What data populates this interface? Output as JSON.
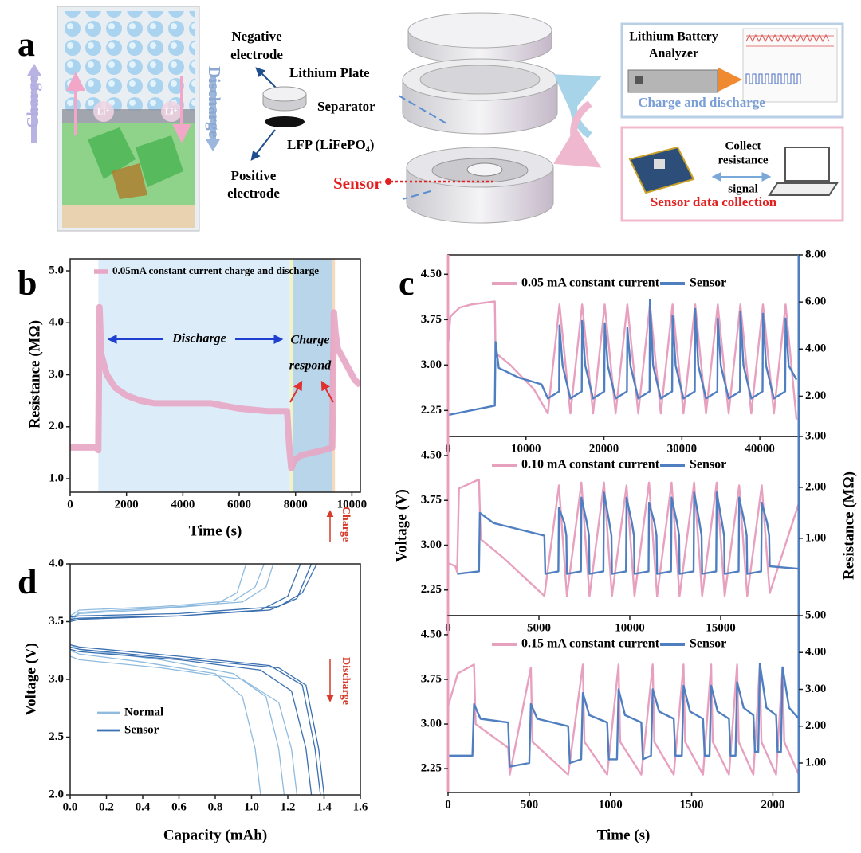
{
  "panel_a": {
    "label": "a",
    "charge": "Charge",
    "discharge": "Discharge",
    "li_ion": "Li⁺",
    "negative_electrode": [
      "Negative",
      "electrode"
    ],
    "lithium_plate": "Lithium Plate",
    "separator": "Separator",
    "lfp": "LFP (LiFePO₄)",
    "positive_electrode": [
      "Positive",
      "electrode"
    ],
    "sensor": "Sensor",
    "analyzer": [
      "Lithium Battery",
      "Analyzer"
    ],
    "charge_discharge": "Charge and discharge",
    "collect": [
      "Collect",
      "resistance",
      "signal"
    ],
    "sensor_data": "Sensor data collection"
  },
  "chart_data": [
    {
      "type": "line",
      "label": "b",
      "xlabel": "Time (s)",
      "ylabel": "Resistance (MΩ)",
      "xlim": [
        0,
        10300
      ],
      "xticks": [
        0,
        2000,
        4000,
        6000,
        8000,
        10000
      ],
      "ylim": [
        0.74,
        5.23
      ],
      "yticks": [
        {
          "value": 1,
          "label": "1.0"
        },
        {
          "value": 2,
          "label": "2.0"
        },
        {
          "value": 3,
          "label": "3.0"
        },
        {
          "value": 4,
          "label": "4.0"
        },
        {
          "value": 5,
          "label": "5.0"
        }
      ],
      "legend": "upper left",
      "regions": [
        {
          "start": 1000,
          "end": 7800,
          "color": "#dcedf9"
        },
        {
          "start": 7800,
          "end": 7900,
          "color": "#f3f4c6"
        },
        {
          "start": 7900,
          "end": 9300,
          "color": "#b8d5ea"
        },
        {
          "start": 9300,
          "end": 9400,
          "color": "#f7d9bd"
        }
      ],
      "annotations": [
        "Discharge",
        "Charge",
        "respond"
      ],
      "series": [
        {
          "name": "0.05mA constant current charge and discharge",
          "color": "#e7a6c4",
          "x": [
            0,
            950,
            1000,
            1040,
            1100,
            1300,
            1600,
            2000,
            2500,
            3000,
            4000,
            5000,
            6000,
            7000,
            7700,
            7780,
            7850,
            7950,
            8200,
            8600,
            9000,
            9300,
            9360,
            9420,
            9500,
            9800,
            10100,
            10300
          ],
          "values": [
            1.6,
            1.6,
            1.55,
            4.3,
            3.4,
            3.0,
            2.75,
            2.6,
            2.5,
            2.45,
            2.45,
            2.45,
            2.35,
            2.3,
            2.3,
            1.6,
            1.2,
            1.35,
            1.45,
            1.5,
            1.55,
            1.6,
            4.2,
            3.8,
            3.5,
            3.2,
            2.9,
            2.8
          ]
        }
      ]
    },
    {
      "type": "line",
      "label": "c",
      "xlim": [
        0,
        45000
      ],
      "xticks": [
        0,
        10000,
        20000,
        30000,
        40000
      ],
      "ylim": [
        1.82,
        4.82
      ],
      "yticks": [
        2.25,
        {
          "value": 3,
          "label": "3.00"
        },
        3.75,
        {
          "value": 4.5,
          "label": "4.50"
        }
      ],
      "y2lim": [
        0.29,
        8.0
      ],
      "y2ticks": [
        {
          "value": 2,
          "label": "2.00"
        },
        {
          "value": 4,
          "label": "4.00"
        },
        {
          "value": 6,
          "label": "6.00"
        },
        {
          "value": 8,
          "label": "8.00"
        }
      ],
      "legend": "upper right",
      "series": [
        {
          "name": "0.05 mA constant current",
          "color": "#e8a0bf",
          "x": [
            0,
            300,
            1500,
            3000,
            6000,
            6100,
            8000,
            11000,
            12800,
            14300,
            15700,
            17200,
            18600,
            20100,
            21500,
            23000,
            24400,
            25900,
            27300,
            28800,
            30200,
            31700,
            33100,
            34600,
            36000,
            37500,
            38900,
            40400,
            41800,
            43300,
            44700
          ],
          "values": [
            3.3,
            3.8,
            3.95,
            4.0,
            4.05,
            3.2,
            3.0,
            2.6,
            2.2,
            4.0,
            2.2,
            4.0,
            2.2,
            4.0,
            2.2,
            4.0,
            2.2,
            4.0,
            2.2,
            4.0,
            2.2,
            4.0,
            2.2,
            4.0,
            2.2,
            4.0,
            2.2,
            4.0,
            2.2,
            4.0,
            2.1
          ]
        },
        {
          "name": "Sensor",
          "color": "#4f7fc0",
          "axis": "y2",
          "x": [
            0,
            3000,
            6000,
            6100,
            6500,
            9000,
            12000,
            12800,
            14250,
            14300,
            14700,
            15700,
            17150,
            17200,
            17600,
            18600,
            20050,
            20100,
            20500,
            21500,
            22950,
            23000,
            23400,
            24400,
            25850,
            25900,
            26300,
            27300,
            28750,
            28800,
            29200,
            30200,
            31650,
            31700,
            32100,
            33100,
            34550,
            34600,
            35000,
            36000,
            37450,
            37500,
            37900,
            38900,
            40350,
            40400,
            40800,
            41800,
            43250,
            43300,
            43700,
            44700
          ],
          "values": [
            1.2,
            1.4,
            1.6,
            4.3,
            3.2,
            2.8,
            2.5,
            1.9,
            2.2,
            5.0,
            3.3,
            1.9,
            2.2,
            5.2,
            3.3,
            1.9,
            2.2,
            5.1,
            3.3,
            1.9,
            2.2,
            4.9,
            3.3,
            1.9,
            2.2,
            6.1,
            3.3,
            1.9,
            2.2,
            5.4,
            3.3,
            1.9,
            2.2,
            5.7,
            3.3,
            1.9,
            2.2,
            5.3,
            3.3,
            1.9,
            2.2,
            5.6,
            3.3,
            1.9,
            2.2,
            5.5,
            3.3,
            1.9,
            2.2,
            5.3,
            3.3,
            2.7
          ]
        }
      ]
    },
    {
      "type": "line",
      "ylabel": "Voltage (V)",
      "y2label": "Resistance (MΩ)",
      "xlim": [
        0,
        19300
      ],
      "xticks": [
        0,
        5000,
        10000,
        15000
      ],
      "ylim": [
        1.82,
        4.82
      ],
      "yticks": [
        2.25,
        {
          "value": 3,
          "label": "3.00"
        },
        3.75,
        {
          "value": 4.5,
          "label": "4.50"
        }
      ],
      "y2lim": [
        -0.52,
        3.0
      ],
      "y2ticks": [
        {
          "value": 1,
          "label": "1.00"
        },
        {
          "value": 2,
          "label": "2.00"
        },
        {
          "value": 3,
          "label": "3.00"
        }
      ],
      "legend": "upper right",
      "series": [
        {
          "name": "0.10 mA constant current",
          "color": "#e8a0bf",
          "x": [
            0,
            400,
            500,
            600,
            1700,
            1800,
            3000,
            5300,
            6100,
            6540,
            7340,
            7780,
            8580,
            9020,
            9820,
            10260,
            11060,
            11500,
            12300,
            12740,
            13540,
            13980,
            14780,
            15220,
            16020,
            16460,
            17260,
            17700,
            19300
          ],
          "values": [
            2.7,
            2.65,
            2.55,
            3.95,
            4.1,
            3.1,
            2.8,
            2.15,
            4.0,
            2.15,
            4.05,
            2.15,
            4.05,
            2.15,
            4.0,
            2.15,
            4.05,
            2.15,
            4.05,
            2.15,
            4.05,
            2.15,
            4.05,
            2.15,
            4.0,
            2.15,
            4.0,
            2.2,
            3.7
          ]
        },
        {
          "name": "Sensor",
          "color": "#4f7fc0",
          "axis": "y2",
          "x": [
            500,
            1700,
            1750,
            2500,
            5300,
            5350,
            6070,
            6100,
            6400,
            6510,
            6540,
            7310,
            7340,
            7640,
            7750,
            7780,
            8550,
            8580,
            8880,
            8990,
            9020,
            9790,
            9820,
            10120,
            10230,
            10260,
            11030,
            11060,
            11360,
            11470,
            11500,
            12270,
            12300,
            12600,
            12710,
            12740,
            13510,
            13540,
            13840,
            13950,
            13980,
            14750,
            14780,
            15080,
            15190,
            15220,
            15990,
            16020,
            16320,
            16430,
            16460,
            17230,
            17260,
            17560,
            17670,
            17700,
            19300
          ],
          "values": [
            0.3,
            0.35,
            1.5,
            1.3,
            1.05,
            0.3,
            0.35,
            1.6,
            1.3,
            1.05,
            0.3,
            0.35,
            1.8,
            1.3,
            1.05,
            0.3,
            0.35,
            1.9,
            1.3,
            1.05,
            0.3,
            0.35,
            1.8,
            1.3,
            1.05,
            0.3,
            0.35,
            1.7,
            1.3,
            1.05,
            0.3,
            0.35,
            1.8,
            1.3,
            1.05,
            0.3,
            0.35,
            1.9,
            1.3,
            1.05,
            0.3,
            0.35,
            1.9,
            1.3,
            1.05,
            0.3,
            0.35,
            1.8,
            1.3,
            1.05,
            0.3,
            0.35,
            1.7,
            1.3,
            1.05,
            0.45,
            0.4
          ]
        }
      ]
    },
    {
      "type": "line",
      "xlabel": "Time (s)",
      "xlim": [
        0,
        2160
      ],
      "xticks": [
        0,
        500,
        1000,
        1500,
        2000
      ],
      "ylim": [
        1.85,
        4.82
      ],
      "yticks": [
        2.25,
        {
          "value": 3,
          "label": "3.00"
        },
        3.75,
        {
          "value": 4.5,
          "label": "4.50"
        }
      ],
      "y2lim": [
        0.2,
        5.0
      ],
      "y2ticks": [
        {
          "value": 1,
          "label": "1.00"
        },
        {
          "value": 2,
          "label": "2.00"
        },
        {
          "value": 3,
          "label": "3.00"
        },
        {
          "value": 4,
          "label": "4.00"
        },
        {
          "value": 5,
          "label": "5.00"
        }
      ],
      "legend": "upper right",
      "series": [
        {
          "name": "0.15 mA constant current",
          "color": "#e8a0bf",
          "x": [
            0,
            60,
            160,
            170,
            370,
            380,
            510,
            520,
            740,
            830,
            840,
            980,
            1050,
            1060,
            1190,
            1260,
            1270,
            1390,
            1450,
            1460,
            1570,
            1620,
            1630,
            1730,
            1780,
            1790,
            1880,
            1920,
            1930,
            2020,
            2060,
            2070,
            2160
          ],
          "values": [
            3.3,
            3.85,
            4.0,
            3.0,
            2.6,
            2.15,
            3.95,
            2.7,
            2.15,
            4.0,
            2.7,
            2.15,
            4.0,
            2.7,
            2.15,
            4.0,
            2.7,
            2.15,
            4.0,
            2.7,
            2.15,
            4.0,
            2.7,
            2.15,
            4.0,
            2.7,
            2.15,
            4.0,
            2.7,
            2.15,
            3.95,
            2.7,
            2.15
          ]
        },
        {
          "name": "Sensor",
          "color": "#4f7fc0",
          "axis": "y2",
          "x": [
            0,
            150,
            160,
            200,
            370,
            380,
            500,
            510,
            550,
            740,
            750,
            820,
            830,
            870,
            980,
            990,
            1040,
            1050,
            1090,
            1190,
            1200,
            1250,
            1260,
            1300,
            1390,
            1400,
            1440,
            1450,
            1490,
            1570,
            1580,
            1610,
            1620,
            1660,
            1730,
            1740,
            1770,
            1780,
            1820,
            1880,
            1890,
            1910,
            1920,
            1960,
            2020,
            2030,
            2050,
            2060,
            2100,
            2160
          ],
          "values": [
            1.2,
            1.2,
            2.6,
            2.2,
            2.1,
            0.9,
            1.0,
            2.6,
            2.2,
            2.0,
            1.0,
            1.1,
            2.9,
            2.3,
            2.1,
            1.1,
            1.1,
            3.0,
            2.3,
            2.1,
            1.1,
            1.2,
            3.0,
            2.4,
            2.2,
            1.2,
            1.2,
            3.1,
            2.4,
            2.2,
            1.2,
            1.2,
            3.1,
            2.4,
            2.2,
            1.2,
            1.2,
            3.2,
            2.5,
            2.3,
            1.3,
            1.3,
            3.7,
            2.5,
            2.3,
            1.3,
            1.3,
            3.6,
            2.5,
            2.2
          ]
        }
      ]
    },
    {
      "type": "line",
      "label": "d",
      "xlabel": "Capacity (mAh)",
      "ylabel": "Voltage (V)",
      "xlim": [
        0,
        1.6
      ],
      "xticks": [
        {
          "value": 0,
          "label": "0.0"
        },
        0.2,
        0.4,
        0.6,
        0.8,
        {
          "value": 1,
          "label": "1.0"
        },
        1.2,
        1.4,
        1.6
      ],
      "ylim": [
        2.0,
        4.0
      ],
      "yticks": [
        {
          "value": 2,
          "label": "2.0"
        },
        2.5,
        {
          "value": 3,
          "label": "3.0"
        },
        3.5,
        {
          "value": 4,
          "label": "4.0"
        }
      ],
      "legend": "center left",
      "annotations": [
        "Charge",
        "Discharge"
      ],
      "series": [
        {
          "name": "Normal",
          "color": "#8fbbdf",
          "x": [
            0,
            0.05,
            0.4,
            0.8,
            0.92,
            0.97,
            null,
            0,
            0.05,
            0.4,
            0.8,
            0.95,
            1.02,
            1.05,
            null,
            0,
            0.05,
            0.5,
            0.9,
            1.02,
            1.07,
            null,
            0,
            0.05,
            0.5,
            0.9,
            1.08,
            1.15,
            1.18,
            null,
            0,
            0.05,
            0.5,
            0.95,
            1.08,
            1.12,
            null,
            0,
            0.05,
            0.5,
            0.95,
            1.15,
            1.22,
            1.25
          ],
          "values": [
            3.5,
            3.57,
            3.6,
            3.65,
            3.75,
            4.0,
            null,
            3.25,
            3.22,
            3.15,
            3.05,
            2.85,
            2.4,
            2.0,
            null,
            3.55,
            3.6,
            3.63,
            3.68,
            3.8,
            4.0,
            null,
            3.3,
            3.26,
            3.17,
            3.05,
            2.85,
            2.4,
            2.0,
            null,
            3.52,
            3.58,
            3.62,
            3.67,
            3.8,
            4.0,
            null,
            3.2,
            3.17,
            3.1,
            3.0,
            2.8,
            2.4,
            2.0
          ]
        },
        {
          "name": "Sensor",
          "color": "#3a6fb0",
          "x": [
            0,
            0.05,
            0.6,
            1.1,
            1.25,
            1.33,
            null,
            0,
            0.05,
            0.6,
            1.1,
            1.28,
            1.35,
            1.38,
            null,
            0,
            0.05,
            0.6,
            1.15,
            1.28,
            1.36,
            null,
            0,
            0.05,
            0.6,
            1.15,
            1.3,
            1.37,
            1.4,
            null,
            0,
            0.05,
            0.6,
            1.05,
            1.2,
            1.27,
            null,
            0,
            0.05,
            0.6,
            1.05,
            1.22,
            1.3,
            1.33
          ],
          "values": [
            3.52,
            3.53,
            3.55,
            3.6,
            3.7,
            4.0,
            null,
            3.3,
            3.28,
            3.2,
            3.12,
            2.95,
            2.4,
            2.0,
            null,
            3.54,
            3.55,
            3.57,
            3.63,
            3.75,
            4.0,
            null,
            3.28,
            3.26,
            3.18,
            3.1,
            2.95,
            2.4,
            2.0,
            null,
            3.5,
            3.52,
            3.55,
            3.6,
            3.72,
            4.0,
            null,
            3.26,
            3.24,
            3.17,
            3.08,
            2.9,
            2.4,
            2.0
          ]
        }
      ]
    }
  ]
}
